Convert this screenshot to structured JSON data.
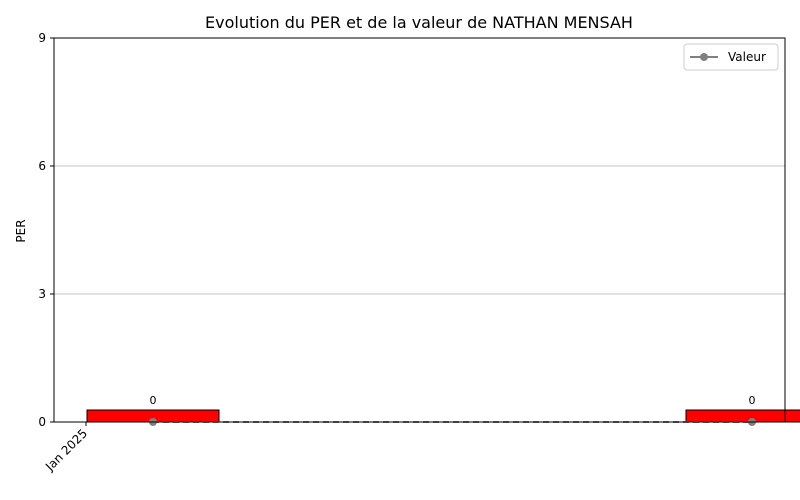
{
  "chart_data": {
    "type": "bar",
    "title": "Evolution du PER et de la valeur de NATHAN MENSAH",
    "xlabel": "",
    "ylabel": "PER",
    "ylim": [
      0,
      9
    ],
    "yticks": [
      0,
      3,
      6,
      9
    ],
    "ytick_labels": [
      "0",
      "3",
      "6",
      "9"
    ],
    "x_domain": [
      "2025-01-01",
      "2025-01-05"
    ],
    "xticks": [
      {
        "x": "2025-01-01",
        "label": "Jan 2025"
      }
    ],
    "grid": "y",
    "bars": [
      {
        "x": "2025-01-01",
        "value": 0,
        "label": "0",
        "color": "#ff0000"
      },
      {
        "x": "2025-01-05",
        "value": 0,
        "label": "0",
        "color": "#ff0000"
      }
    ],
    "series": [
      {
        "name": "Valeur",
        "type": "line",
        "x": [
          "2025-01-01",
          "2025-01-05"
        ],
        "values": [
          0,
          0
        ],
        "color": "#808080",
        "linestyle": "dashed",
        "marker": "circle"
      }
    ],
    "legend": {
      "position": "top-right",
      "entries": [
        "Valeur"
      ]
    }
  }
}
